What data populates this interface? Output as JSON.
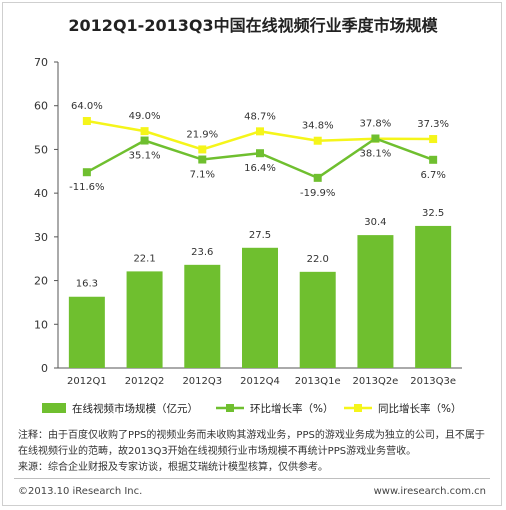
{
  "title": "2012Q1-2013Q3中国在线视频行业季度市场规模",
  "chart_data": {
    "type": "bar",
    "categories": [
      "2012Q1",
      "2012Q2",
      "2012Q3",
      "2012Q4",
      "2013Q1e",
      "2013Q2e",
      "2013Q3e"
    ],
    "ylim": [
      0,
      70
    ],
    "yticks": [
      0,
      10,
      20,
      30,
      40,
      50,
      60,
      70
    ],
    "grid": false,
    "legend_position": "bottom",
    "series": [
      {
        "name": "在线视频市场规模（亿元）",
        "kind": "bar",
        "color": "#6fbf2f",
        "values": [
          16.3,
          22.1,
          23.6,
          27.5,
          22.0,
          30.4,
          32.5
        ],
        "labels": [
          "16.3",
          "22.1",
          "23.6",
          "27.5",
          "22.0",
          "30.4",
          "32.5"
        ]
      },
      {
        "name": "环比增长率（%）",
        "kind": "line",
        "color": "#6fbf2f",
        "values": [
          -11.6,
          35.1,
          7.1,
          16.4,
          -19.9,
          38.1,
          6.7
        ],
        "labels": [
          "-11.6%",
          "35.1%",
          "7.1%",
          "16.4%",
          "-19.9%",
          "38.1%",
          "6.7%"
        ]
      },
      {
        "name": "同比增长率（%）",
        "kind": "line",
        "color": "#f5f51a",
        "values": [
          64.0,
          49.0,
          21.9,
          48.7,
          34.8,
          37.8,
          37.3
        ],
        "labels": [
          "64.0%",
          "49.0%",
          "21.9%",
          "48.7%",
          "34.8%",
          "37.8%",
          "37.3%"
        ]
      }
    ]
  },
  "notes": [
    "注释：由于百度仅收购了PPS的视频业务而未收购其游戏业务，PPS的游戏业务成为独立的公司，且不属于在线视频行业的范畴，故2013Q3开始在线视频行业市场规模不再统计PPS游戏业务营收。",
    "来源：综合企业财报及专家访谈，根据艾瑞统计模型核算，仅供参考。"
  ],
  "footer": {
    "copyright": "©2013.10 iResearch Inc.",
    "site": "www.iresearch.com.cn"
  }
}
